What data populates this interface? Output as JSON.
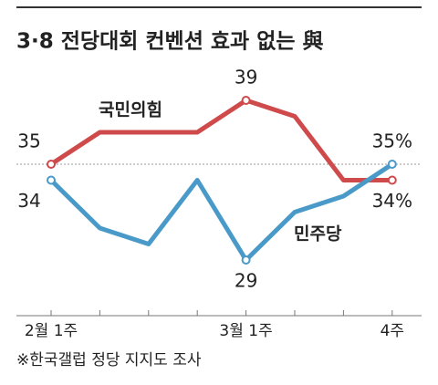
{
  "chart_data": {
    "type": "line",
    "title": "3·8 전당대회 컨벤션 효과 없는 與",
    "categories": [
      "2월 1주",
      null,
      null,
      null,
      "3월 1주",
      null,
      null,
      "4주"
    ],
    "series": [
      {
        "name": "국민의힘",
        "color": "#cf4a4a",
        "values": [
          35,
          37,
          37,
          37,
          39,
          38,
          34,
          34
        ],
        "value_labels": [
          "35",
          null,
          null,
          null,
          "39",
          null,
          null,
          "34%"
        ]
      },
      {
        "name": "민주당",
        "color": "#4a9ac9",
        "values": [
          34,
          31,
          30,
          34,
          29,
          32,
          33,
          35
        ],
        "value_labels": [
          "34",
          null,
          null,
          null,
          "29",
          null,
          null,
          "35%"
        ]
      }
    ],
    "reference_line": 35,
    "ylim": [
      27,
      41
    ],
    "source": "※한국갤럽 정당 지지도 조사"
  }
}
